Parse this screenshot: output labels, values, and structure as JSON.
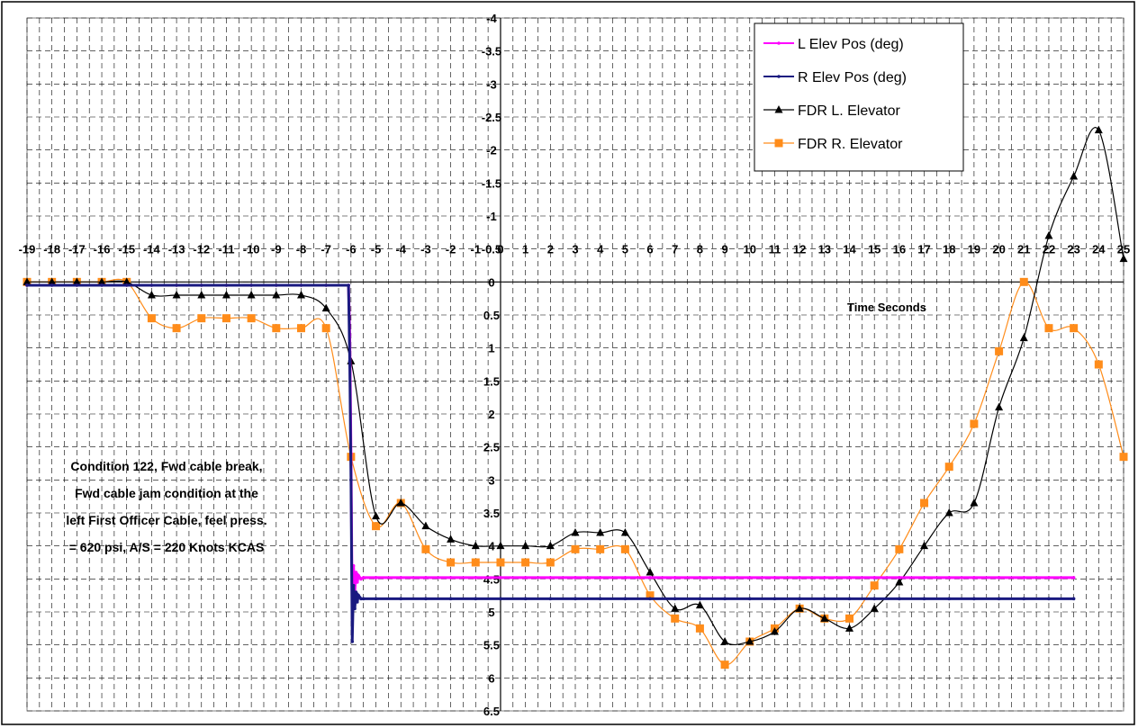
{
  "chart_data": {
    "type": "line",
    "xlabel": "Time Seconds",
    "ylabel": "",
    "xlim": [
      -19,
      25
    ],
    "ylim": [
      6.5,
      -4
    ],
    "y_inverted": true,
    "grid": true,
    "legend_position": "top-right",
    "x_ticks": [
      -19,
      -18,
      -17,
      -16,
      -15,
      -14,
      -13,
      -12,
      -11,
      -10,
      -9,
      -8,
      -7,
      -6,
      -5,
      -4,
      -3,
      -2,
      -1,
      0,
      1,
      2,
      3,
      4,
      5,
      6,
      7,
      8,
      9,
      10,
      11,
      12,
      13,
      14,
      15,
      16,
      17,
      18,
      19,
      20,
      21,
      22,
      23,
      24,
      25
    ],
    "y_ticks": [
      "-4",
      "-3.5",
      "-3",
      "-2.5",
      "-2",
      "-1.5",
      "-1",
      "-0.5",
      "0",
      "0.5",
      "1",
      "1.5",
      "2",
      "2.5",
      "3",
      "3.5",
      "4",
      "4.5",
      "5",
      "5.5",
      "6",
      "6.5"
    ],
    "annotation": [
      "Condition 122, Fwd cable break,",
      "Fwd cable jam condition at the",
      "left First Officer Cable, feel press.",
      "= 620 psi, A/S = 220 Knots KCAS"
    ],
    "series": [
      {
        "name": "L Elev Pos (deg)",
        "color": "#ff00ff",
        "marker": "dot",
        "x": [
          -19,
          -18,
          -17,
          -16,
          -15,
          -14,
          -13,
          -12,
          -11,
          -10,
          -9,
          -8,
          -7,
          -6.1,
          -6.05,
          -6.0,
          -5.95,
          -5.9,
          -5.85,
          -5.8,
          -5.75,
          -5.7,
          -5.6,
          -5.5,
          -5,
          -4,
          -3,
          -2,
          -1,
          0,
          1,
          2,
          3,
          4,
          5,
          6,
          7,
          8,
          9,
          10,
          11,
          12,
          13,
          14,
          15,
          16,
          17,
          18,
          19,
          20,
          21,
          22,
          23
        ],
        "y": [
          0.05,
          0.05,
          0.05,
          0.05,
          0.05,
          0.05,
          0.05,
          0.05,
          0.05,
          0.05,
          0.05,
          0.05,
          0.05,
          0.05,
          0.8,
          2.6,
          5.1,
          4.3,
          4.7,
          4.4,
          4.55,
          4.45,
          4.5,
          4.48,
          4.48,
          4.48,
          4.48,
          4.48,
          4.48,
          4.48,
          4.48,
          4.48,
          4.48,
          4.48,
          4.48,
          4.48,
          4.48,
          4.48,
          4.48,
          4.48,
          4.48,
          4.48,
          4.48,
          4.48,
          4.48,
          4.48,
          4.48,
          4.48,
          4.48,
          4.48,
          4.48,
          4.48,
          4.48
        ]
      },
      {
        "name": "R Elev Pos (deg)",
        "color": "#1a1a80",
        "marker": "dot",
        "x": [
          -19,
          -18,
          -17,
          -16,
          -15,
          -14,
          -13,
          -12,
          -11,
          -10,
          -9,
          -8,
          -7,
          -6.1,
          -6.05,
          -6.0,
          -5.95,
          -5.9,
          -5.85,
          -5.8,
          -5.75,
          -5.7,
          -5.6,
          -5.5,
          -5,
          -4,
          -3,
          -2,
          -1,
          0,
          1,
          2,
          3,
          4,
          5,
          6,
          7,
          8,
          9,
          10,
          11,
          12,
          13,
          14,
          15,
          16,
          17,
          18,
          19,
          20,
          21,
          22,
          23
        ],
        "y": [
          0.05,
          0.05,
          0.05,
          0.05,
          0.05,
          0.05,
          0.05,
          0.05,
          0.05,
          0.05,
          0.05,
          0.05,
          0.05,
          0.05,
          1.2,
          3.0,
          5.45,
          4.6,
          4.95,
          4.7,
          4.85,
          4.75,
          4.8,
          4.8,
          4.8,
          4.8,
          4.8,
          4.8,
          4.8,
          4.8,
          4.8,
          4.8,
          4.8,
          4.8,
          4.8,
          4.8,
          4.8,
          4.8,
          4.8,
          4.8,
          4.8,
          4.8,
          4.8,
          4.8,
          4.8,
          4.8,
          4.8,
          4.8,
          4.8,
          4.8,
          4.8,
          4.8,
          4.8
        ]
      },
      {
        "name": "FDR L. Elevator",
        "color": "#000000",
        "marker": "triangle",
        "x": [
          -19,
          -18,
          -17,
          -16,
          -15,
          -14,
          -13,
          -12,
          -11,
          -10,
          -9,
          -8,
          -7,
          -6,
          -5,
          -4,
          -3,
          -2,
          -1,
          0,
          1,
          2,
          3,
          4,
          5,
          6,
          7,
          8,
          9,
          10,
          11,
          12,
          13,
          14,
          15,
          16,
          17,
          18,
          19,
          20,
          21,
          22,
          23,
          24,
          25
        ],
        "y": [
          0,
          0,
          0,
          0,
          0,
          0.2,
          0.2,
          0.2,
          0.2,
          0.2,
          0.2,
          0.2,
          0.4,
          1.2,
          3.55,
          3.35,
          3.7,
          3.9,
          4.0,
          4.0,
          4.0,
          4.0,
          3.8,
          3.8,
          3.8,
          4.4,
          4.95,
          4.9,
          5.45,
          5.45,
          5.3,
          4.95,
          5.1,
          5.25,
          4.95,
          4.55,
          4.0,
          3.5,
          3.35,
          1.9,
          0.85,
          -0.7,
          -1.6,
          -2.3,
          -0.35
        ]
      },
      {
        "name": "FDR R. Elevator",
        "color": "#ff8c1a",
        "marker": "square",
        "x": [
          -19,
          -18,
          -17,
          -16,
          -15,
          -14,
          -13,
          -12,
          -11,
          -10,
          -9,
          -8,
          -7,
          -6,
          -5,
          -4,
          -3,
          -2,
          -1,
          0,
          1,
          2,
          3,
          4,
          5,
          6,
          7,
          8,
          9,
          10,
          11,
          12,
          13,
          14,
          15,
          16,
          17,
          18,
          19,
          20,
          21,
          22,
          23,
          24,
          25
        ],
        "y": [
          0,
          0,
          0,
          0,
          0,
          0.55,
          0.7,
          0.55,
          0.55,
          0.55,
          0.7,
          0.7,
          0.7,
          2.65,
          3.7,
          3.35,
          4.05,
          4.25,
          4.25,
          4.25,
          4.25,
          4.25,
          4.05,
          4.05,
          4.05,
          4.75,
          5.1,
          5.25,
          5.8,
          5.45,
          5.25,
          4.95,
          5.1,
          5.1,
          4.6,
          4.05,
          3.35,
          2.8,
          2.15,
          1.05,
          0,
          0.7,
          0.7,
          1.25,
          2.65
        ]
      }
    ]
  }
}
